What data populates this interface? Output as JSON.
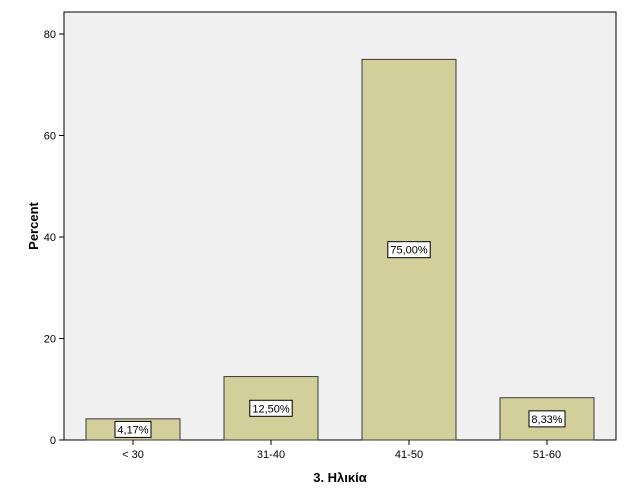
{
  "chart_data": {
    "type": "bar",
    "categories": [
      "< 30",
      "31-40",
      "41-50",
      "51-60"
    ],
    "values": [
      4.17,
      12.5,
      75.0,
      8.33
    ],
    "data_labels": [
      "4,17%",
      "12,50%",
      "75,00%",
      "8,33%"
    ],
    "xlabel": "3. Ηλικία",
    "ylabel": "Percent",
    "ylim": [
      0,
      80
    ],
    "yticks": [
      0,
      20,
      40,
      60,
      80
    ],
    "ytick_labels": [
      "0",
      "20",
      "40",
      "60",
      "80"
    ],
    "grid": false,
    "legend": "none",
    "colors": {
      "bar_fill": "#d3cf9b",
      "bar_stroke": "#3a3a3a",
      "plot_background": "#f0f0f0",
      "frame": "#000000"
    }
  }
}
